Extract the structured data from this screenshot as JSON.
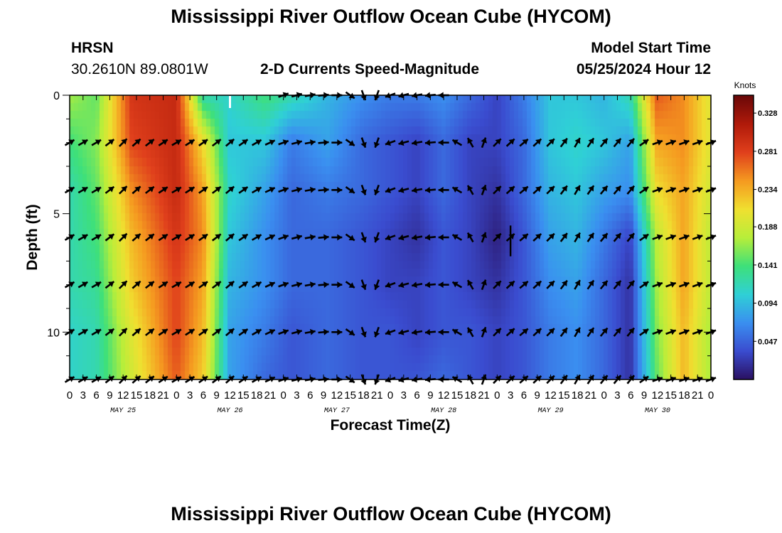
{
  "header": {
    "title": "Mississippi River Outflow Ocean Cube (HYCOM)",
    "station": "HRSN",
    "coords": "30.2610N  89.0801W",
    "plot_title": "2-D Currents Speed-Magnitude",
    "start_label": "Model Start Time",
    "start_value": "05/25/2024 Hour 12"
  },
  "footer": {
    "title": "Mississippi River Outflow Ocean Cube (HYCOM)"
  },
  "chart_data": {
    "type": "heatmap",
    "title": "2-D Currents Speed-Magnitude",
    "xlabel": "Forecast Time(Z)",
    "ylabel": "Depth (ft)",
    "ylim": [
      0,
      12
    ],
    "y_ticks": [
      0,
      5,
      10
    ],
    "x_tick_labels": [
      "0",
      "3",
      "6",
      "9",
      "12",
      "15",
      "18",
      "21",
      "0",
      "3",
      "6",
      "9",
      "12",
      "15",
      "18",
      "21",
      "0",
      "3",
      "6",
      "9",
      "12",
      "15",
      "18",
      "21",
      "0",
      "3",
      "6",
      "9",
      "12",
      "15",
      "18",
      "21",
      "0",
      "3",
      "6",
      "9",
      "12",
      "15",
      "18",
      "21",
      "0",
      "3",
      "6",
      "9",
      "12",
      "15",
      "18",
      "21",
      "0"
    ],
    "day_labels": [
      "MAY 25",
      "MAY 26",
      "MAY 27",
      "MAY 28",
      "MAY 29",
      "MAY 30"
    ],
    "colorbar": {
      "unit": "Knots",
      "ticks": [
        "0.328",
        "0.281",
        "0.234",
        "0.188",
        "0.141",
        "0.094",
        "0.047"
      ],
      "tick_values": [
        0.328,
        0.281,
        0.234,
        0.188,
        0.141,
        0.094,
        0.047
      ],
      "range": [
        0,
        0.35
      ],
      "colors": [
        "#2a1060",
        "#3a4ccf",
        "#3a8ff0",
        "#2fd0d6",
        "#3ee07a",
        "#b8ee3a",
        "#f0e030",
        "#f59a20",
        "#e0401c",
        "#b01a0a",
        "#6a0808"
      ]
    },
    "depth_levels": [
      0,
      2,
      4,
      6,
      8,
      10,
      12
    ],
    "speed_keyframes_hours": [
      0,
      6,
      14,
      24,
      30,
      36,
      44,
      50,
      58,
      66,
      72,
      78,
      84,
      90,
      96,
      102,
      108,
      114,
      120,
      126,
      132,
      138,
      144
    ],
    "speed_keyframes_knots": [
      [
        0.17,
        0.15,
        0.29,
        0.3,
        0.12,
        0.11,
        0.14,
        0.12,
        0.09,
        0.07,
        0.06,
        0.06,
        0.07,
        0.05,
        0.03,
        0.06,
        0.1,
        0.1,
        0.09,
        0.12,
        0.27,
        0.25,
        0.2
      ],
      [
        0.14,
        0.16,
        0.28,
        0.3,
        0.21,
        0.1,
        0.1,
        0.06,
        0.08,
        0.05,
        0.04,
        0.03,
        0.05,
        0.03,
        0.03,
        0.05,
        0.1,
        0.11,
        0.1,
        0.08,
        0.24,
        0.25,
        0.2
      ],
      [
        0.12,
        0.15,
        0.25,
        0.3,
        0.24,
        0.11,
        0.08,
        0.05,
        0.06,
        0.05,
        0.04,
        0.03,
        0.05,
        0.03,
        0.02,
        0.05,
        0.09,
        0.1,
        0.08,
        0.07,
        0.21,
        0.24,
        0.19
      ],
      [
        0.12,
        0.14,
        0.23,
        0.29,
        0.25,
        0.1,
        0.07,
        0.05,
        0.05,
        0.04,
        0.03,
        0.02,
        0.04,
        0.03,
        0.01,
        0.04,
        0.08,
        0.09,
        0.06,
        0.03,
        0.18,
        0.24,
        0.18
      ],
      [
        0.12,
        0.13,
        0.22,
        0.28,
        0.24,
        0.09,
        0.07,
        0.05,
        0.05,
        0.04,
        0.03,
        0.03,
        0.04,
        0.03,
        0.02,
        0.04,
        0.07,
        0.08,
        0.05,
        0.02,
        0.17,
        0.24,
        0.18
      ],
      [
        0.11,
        0.12,
        0.2,
        0.28,
        0.23,
        0.08,
        0.06,
        0.04,
        0.05,
        0.04,
        0.04,
        0.03,
        0.04,
        0.04,
        0.03,
        0.04,
        0.06,
        0.07,
        0.05,
        0.02,
        0.16,
        0.23,
        0.17
      ],
      [
        0.11,
        0.12,
        0.19,
        0.27,
        0.22,
        0.08,
        0.05,
        0.04,
        0.05,
        0.04,
        0.04,
        0.04,
        0.05,
        0.04,
        0.03,
        0.04,
        0.06,
        0.07,
        0.05,
        0.02,
        0.15,
        0.23,
        0.17
      ]
    ],
    "vector_hours": [
      0,
      3,
      6,
      9,
      12,
      15,
      18,
      21,
      24,
      27,
      30,
      33,
      36,
      39,
      42,
      45,
      48,
      51,
      54,
      57,
      60,
      63,
      66,
      69,
      72,
      75,
      78,
      81,
      84,
      87,
      90,
      93,
      96,
      99,
      102,
      105,
      108,
      111,
      114,
      117,
      120,
      123,
      126,
      129,
      132,
      135,
      138,
      141,
      144
    ],
    "direction_keyframes_hours": [
      0,
      6,
      12,
      24,
      36,
      48,
      60,
      66,
      69,
      72,
      78,
      84,
      90,
      93,
      96,
      102,
      108,
      114,
      120,
      126,
      132,
      144
    ],
    "direction_keyframes_deg": [
      60,
      60,
      45,
      60,
      50,
      70,
      90,
      160,
      200,
      250,
      260,
      270,
      330,
      20,
      45,
      50,
      45,
      30,
      40,
      40,
      70,
      70
    ]
  }
}
